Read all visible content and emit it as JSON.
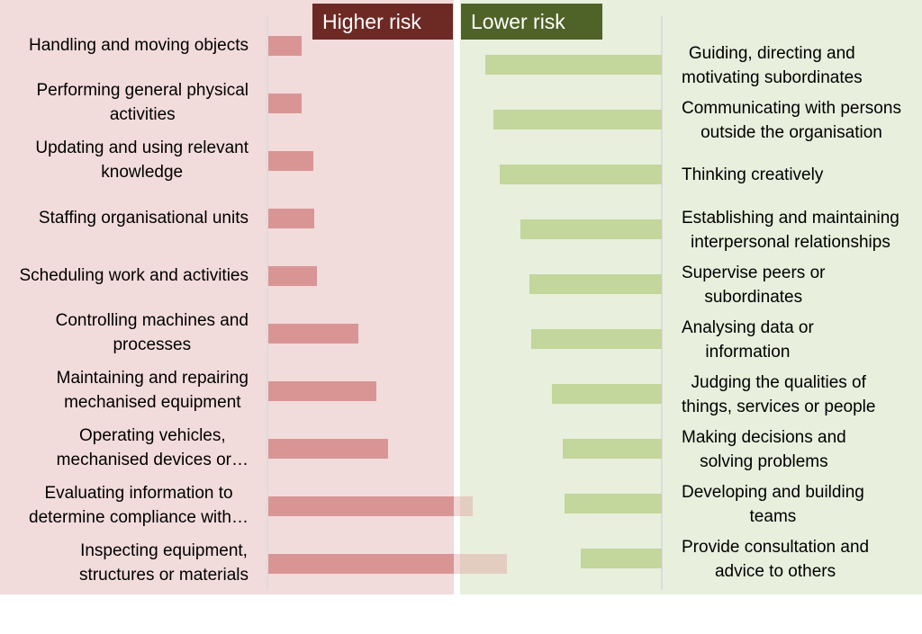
{
  "chart_data": {
    "type": "bar",
    "orientation": "horizontal",
    "groups": [
      {
        "name": "Higher risk",
        "color": "#d99594",
        "header_color": "#6d2a25",
        "categories": [
          [
            "Handling and moving objects"
          ],
          [
            "Performing general physical",
            "activities"
          ],
          [
            "Updating and using relevant",
            "knowledge"
          ],
          [
            "Staffing organisational units"
          ],
          [
            "Scheduling work and activities"
          ],
          [
            "Controlling machines and",
            "processes"
          ],
          [
            "Maintaining and repairing",
            "mechanised equipment"
          ],
          [
            "Operating vehicles,",
            "mechanised devices or…"
          ],
          [
            "Evaluating information to",
            "determine compliance with…"
          ],
          [
            "Inspecting equipment,",
            "structures or materials"
          ]
        ],
        "values": [
          37,
          37,
          50,
          51,
          54,
          100,
          120,
          133,
          227,
          265
        ]
      },
      {
        "name": "Lower risk",
        "color": "#c3d69b",
        "header_color": "#4f6228",
        "categories": [
          [
            "Guiding, directing and",
            "motivating subordinates"
          ],
          [
            "Communicating with persons",
            "outside the organisation"
          ],
          [
            "Thinking creatively"
          ],
          [
            "Establishing and maintaining",
            "interpersonal relationships"
          ],
          [
            "Supervise peers or",
            "subordinates"
          ],
          [
            "Analysing data or",
            "information"
          ],
          [
            "Judging the qualities of",
            "things, services or people"
          ],
          [
            "Making decisions and",
            "solving problems"
          ],
          [
            "Developing and building",
            "teams"
          ],
          [
            "Provide consultation and",
            "advice to others"
          ]
        ],
        "values": [
          196,
          187,
          180,
          157,
          147,
          145,
          122,
          110,
          108,
          90
        ]
      }
    ],
    "xlabel": "",
    "ylabel": "",
    "grid": false,
    "legend": "top"
  }
}
